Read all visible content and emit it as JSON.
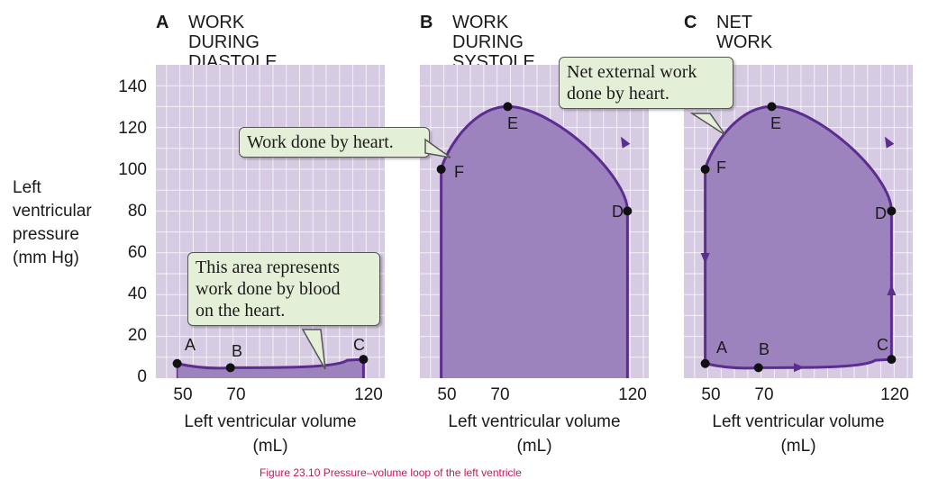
{
  "panels": [
    {
      "letter": "A",
      "title": "WORK DURING\nDIASTOLE"
    },
    {
      "letter": "B",
      "title": "WORK DURING\nSYSTOLE"
    },
    {
      "letter": "C",
      "title": "NET WORK"
    }
  ],
  "y_axis": {
    "label": "Left\nventricular\npressure\n(mm Hg)",
    "ticks": [
      "140",
      "120",
      "100",
      "80",
      "60",
      "40",
      "20",
      "0"
    ]
  },
  "x_axis": {
    "label": "Left ventricular volume\n(mL)",
    "ticks": [
      "50",
      "70",
      "120"
    ]
  },
  "point_labels": {
    "A": "A",
    "B": "B",
    "C": "C",
    "D": "D",
    "E": "E",
    "F": "F"
  },
  "callouts": {
    "diastole": "This area represents\nwork done by blood\non the heart.",
    "systole": "Work done by heart.",
    "net": "Net external work\ndone by heart."
  },
  "caption": "Figure 23.10  Pressure–volume loop of the left ventricle",
  "colors": {
    "plot_bg": "#d6cbe2",
    "grid": "#ffffff",
    "fill": "#9d83be",
    "curve": "#5c2d91",
    "callout_bg": "#e4efd8"
  },
  "chart_data": {
    "type": "area",
    "xlabel": "Left ventricular volume (mL)",
    "ylabel": "Left ventricular pressure (mm Hg)",
    "xlim": [
      42,
      128
    ],
    "ylim": [
      0,
      150
    ],
    "points": {
      "A": [
        50,
        7
      ],
      "B": [
        70,
        5
      ],
      "C": [
        120,
        9
      ],
      "D": [
        120,
        80
      ],
      "E": [
        75,
        130
      ],
      "F": [
        50,
        100
      ]
    }
  }
}
